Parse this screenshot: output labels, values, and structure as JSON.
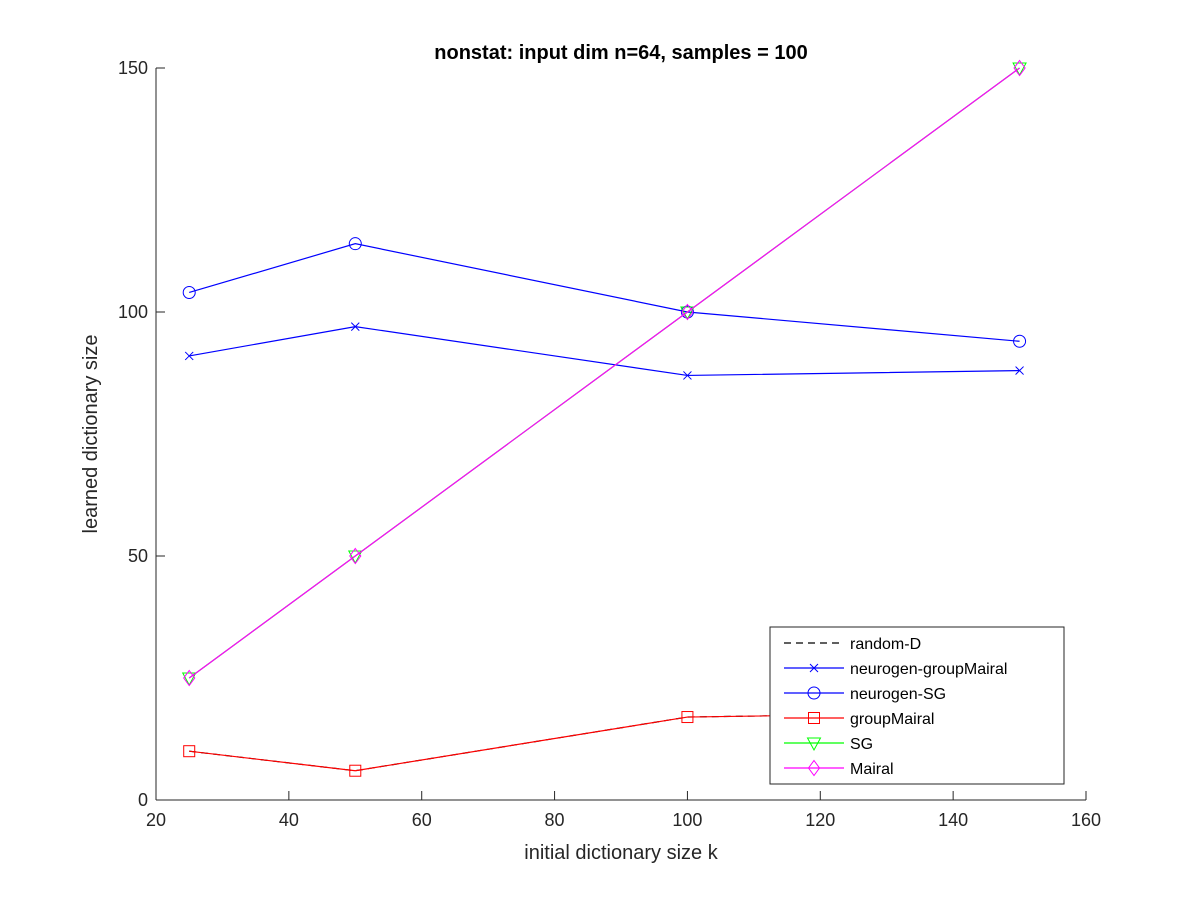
{
  "chart_data": {
    "type": "line",
    "title": "nonstat: input dim n=64, samples = 100",
    "xlabel": "initial dictionary size k",
    "ylabel": "learned dictionary size",
    "xlim": [
      20,
      160
    ],
    "ylim": [
      0,
      150
    ],
    "xticks": [
      20,
      40,
      60,
      80,
      100,
      120,
      140,
      160
    ],
    "yticks": [
      0,
      50,
      100,
      150
    ],
    "x": [
      25,
      50,
      100,
      150
    ],
    "grid": false,
    "legend_position": "bottom-right",
    "series": [
      {
        "name": "random-D",
        "values": [
          10,
          6,
          17,
          18
        ],
        "color": "#000000",
        "dash": "dashed",
        "marker": "none"
      },
      {
        "name": "neurogen-groupMairal",
        "values": [
          91,
          97,
          87,
          88
        ],
        "color": "#0000ff",
        "dash": "solid",
        "marker": "x"
      },
      {
        "name": "neurogen-SG",
        "values": [
          104,
          114,
          100,
          94
        ],
        "color": "#0000ff",
        "dash": "solid",
        "marker": "circle"
      },
      {
        "name": "groupMairal",
        "values": [
          10,
          6,
          17,
          18
        ],
        "color": "#ff0000",
        "dash": "solid",
        "marker": "square"
      },
      {
        "name": "SG",
        "values": [
          25,
          50,
          100,
          150
        ],
        "color": "#00ff00",
        "dash": "solid",
        "marker": "triangle-down"
      },
      {
        "name": "Mairal",
        "values": [
          25,
          50,
          100,
          150
        ],
        "color": "#ff00ff",
        "dash": "solid",
        "marker": "diamond"
      }
    ]
  }
}
